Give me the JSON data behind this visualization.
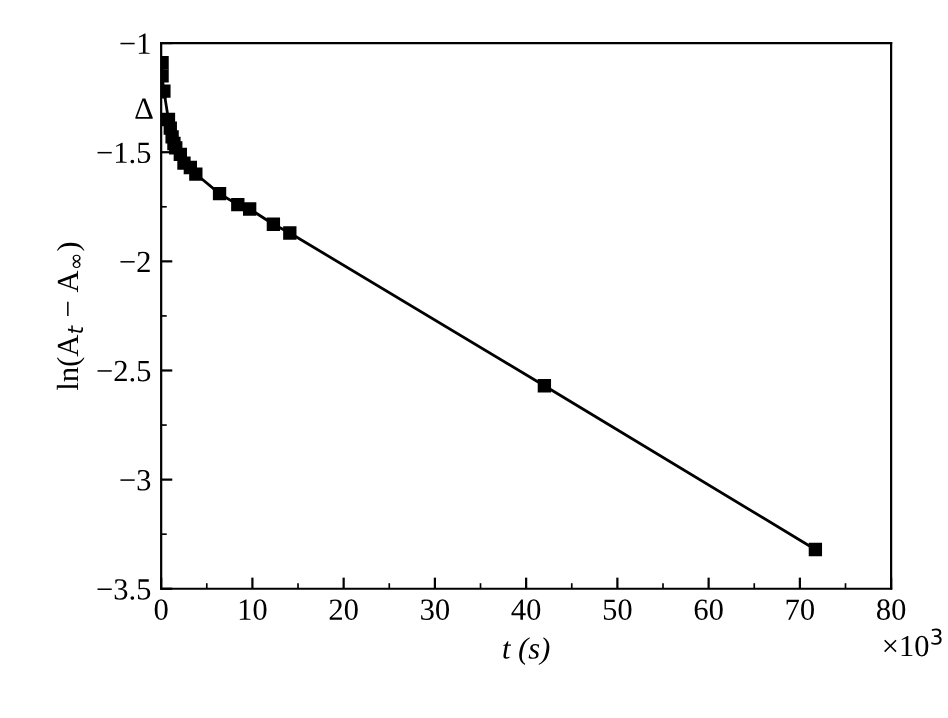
{
  "chart_data": {
    "type": "line",
    "xlabel": "t (s)",
    "ylabel": "ln(A$_{t}$ − A$_{∞}$)",
    "annotations": [
      "Δ",
      "×10$^{3}$"
    ],
    "x": [
      0.1,
      0.1,
      0.3,
      0.8,
      1.0,
      1.2,
      1.4,
      1.6,
      2.1,
      2.5,
      3.2,
      3.8,
      6.4,
      8.4,
      9.7,
      12.3,
      14.1,
      42.0,
      71.7
    ],
    "series": [
      {
        "color": "#000000",
        "values": [
          -1.09,
          -1.15,
          -1.22,
          -1.35,
          -1.39,
          -1.43,
          -1.46,
          -1.48,
          -1.51,
          -1.55,
          -1.57,
          -1.6,
          -1.69,
          -1.74,
          -1.76,
          -1.83,
          -1.87,
          -2.57,
          -3.32
        ]
      }
    ],
    "marker": "square",
    "line_style": "solid",
    "grid": false,
    "legend": false,
    "xlim": [
      0,
      80
    ],
    "xticks": [
      0,
      10,
      20,
      30,
      40,
      50,
      60,
      70,
      80
    ],
    "ylim": [
      -3.5,
      -1
    ],
    "yticks": [
      {
        "value": -3.5,
        "label": "−3.5"
      },
      {
        "value": -3,
        "label": "−3"
      },
      {
        "value": -2.5,
        "label": "−2.5"
      },
      {
        "value": -2,
        "label": "−2"
      },
      {
        "value": -1.5,
        "label": "−1.5"
      },
      {
        "value": -1,
        "label": "−1"
      }
    ]
  }
}
